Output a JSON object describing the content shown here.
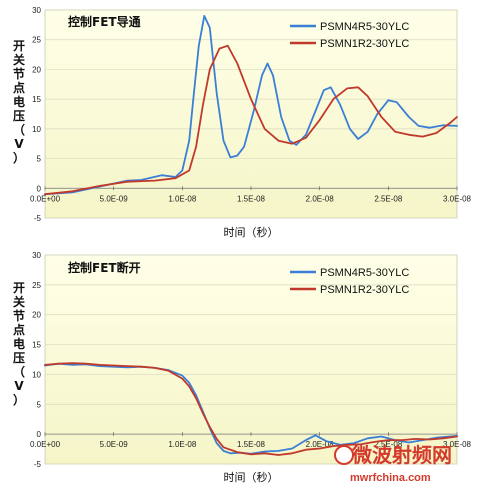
{
  "chart_data": [
    {
      "type": "line",
      "title": "控制FET导通",
      "xlabel": "时间（秒）",
      "ylabel": "开关节点电压（V）",
      "xlim": [
        0,
        3e-08
      ],
      "ylim": [
        -5,
        30
      ],
      "x_ticks": [
        "0.0E+00",
        "5.0E-09",
        "1.0E-08",
        "1.5E-08",
        "2.0E-08",
        "2.5E-08",
        "3.0E-08"
      ],
      "y_ticks": [
        "-5",
        "0",
        "5",
        "10",
        "15",
        "20",
        "25",
        "30"
      ],
      "grid": "horizontal",
      "legend": "top-right",
      "series": [
        {
          "name": "PSMN4R5-30YLC",
          "color": "#3a7fd5",
          "points": [
            [
              0,
              -1
            ],
            [
              2e-09,
              -0.7
            ],
            [
              4e-09,
              0.3
            ],
            [
              6e-09,
              1.3
            ],
            [
              7e-09,
              1.4
            ],
            [
              8.5e-09,
              2.2
            ],
            [
              9.5e-09,
              1.9
            ],
            [
              1e-08,
              3
            ],
            [
              1.05e-08,
              8
            ],
            [
              1.08e-08,
              15
            ],
            [
              1.12e-08,
              24
            ],
            [
              1.16e-08,
              29
            ],
            [
              1.2e-08,
              27
            ],
            [
              1.25e-08,
              16
            ],
            [
              1.3e-08,
              8
            ],
            [
              1.35e-08,
              5.2
            ],
            [
              1.4e-08,
              5.5
            ],
            [
              1.45e-08,
              7
            ],
            [
              1.52e-08,
              13
            ],
            [
              1.58e-08,
              19
            ],
            [
              1.62e-08,
              21
            ],
            [
              1.66e-08,
              19
            ],
            [
              1.72e-08,
              12
            ],
            [
              1.78e-08,
              8
            ],
            [
              1.83e-08,
              7.3
            ],
            [
              1.9e-08,
              9
            ],
            [
              1.97e-08,
              13
            ],
            [
              2.03e-08,
              16.5
            ],
            [
              2.08e-08,
              17
            ],
            [
              2.15e-08,
              14
            ],
            [
              2.22e-08,
              10
            ],
            [
              2.28e-08,
              8.3
            ],
            [
              2.35e-08,
              9.5
            ],
            [
              2.42e-08,
              12.5
            ],
            [
              2.5e-08,
              14.8
            ],
            [
              2.56e-08,
              14.5
            ],
            [
              2.65e-08,
              12
            ],
            [
              2.72e-08,
              10.5
            ],
            [
              2.8e-08,
              10.2
            ],
            [
              2.9e-08,
              10.6
            ],
            [
              3e-08,
              10.5
            ]
          ]
        },
        {
          "name": "PSMN1R2-30YLC",
          "color": "#c0392b",
          "points": [
            [
              0,
              -1
            ],
            [
              2e-09,
              -0.5
            ],
            [
              4e-09,
              0.4
            ],
            [
              6e-09,
              1.1
            ],
            [
              8e-09,
              1.3
            ],
            [
              9.5e-09,
              1.7
            ],
            [
              1.05e-08,
              3
            ],
            [
              1.1e-08,
              7
            ],
            [
              1.15e-08,
              14
            ],
            [
              1.2e-08,
              20
            ],
            [
              1.27e-08,
              23.5
            ],
            [
              1.33e-08,
              24
            ],
            [
              1.4e-08,
              21
            ],
            [
              1.5e-08,
              15
            ],
            [
              1.6e-08,
              10
            ],
            [
              1.7e-08,
              8
            ],
            [
              1.8e-08,
              7.5
            ],
            [
              1.9e-08,
              8.5
            ],
            [
              2e-08,
              11.5
            ],
            [
              2.1e-08,
              15
            ],
            [
              2.2e-08,
              16.8
            ],
            [
              2.28e-08,
              17
            ],
            [
              2.35e-08,
              15.5
            ],
            [
              2.45e-08,
              12
            ],
            [
              2.55e-08,
              9.5
            ],
            [
              2.65e-08,
              9
            ],
            [
              2.75e-08,
              8.7
            ],
            [
              2.85e-08,
              9.3
            ],
            [
              2.95e-08,
              11
            ],
            [
              3e-08,
              12
            ]
          ]
        }
      ]
    },
    {
      "type": "line",
      "title": "控制FET断开",
      "xlabel": "时间（秒）",
      "ylabel": "开关节点电压（V）",
      "xlim": [
        0,
        3e-08
      ],
      "ylim": [
        -5,
        30
      ],
      "x_ticks": [
        "0.0E+00",
        "5.0E-09",
        "1.0E-08",
        "1.5E-08",
        "2.0E-08",
        "2.5E-08",
        "3.0E-08"
      ],
      "y_ticks": [
        "-5",
        "0",
        "5",
        "10",
        "15",
        "20",
        "25",
        "30"
      ],
      "grid": "horizontal",
      "legend": "top-right",
      "series": [
        {
          "name": "PSMN4R5-30YLC",
          "color": "#3a7fd5",
          "points": [
            [
              0,
              11.5
            ],
            [
              1e-09,
              11.8
            ],
            [
              2e-09,
              11.6
            ],
            [
              3e-09,
              11.7
            ],
            [
              4e-09,
              11.4
            ],
            [
              5e-09,
              11.3
            ],
            [
              6e-09,
              11.2
            ],
            [
              7e-09,
              11.3
            ],
            [
              8e-09,
              11.1
            ],
            [
              9e-09,
              10.7
            ],
            [
              1e-08,
              9.8
            ],
            [
              1.05e-08,
              8.6
            ],
            [
              1.1e-08,
              6.5
            ],
            [
              1.15e-08,
              3.8
            ],
            [
              1.2e-08,
              1
            ],
            [
              1.25e-08,
              -1.5
            ],
            [
              1.3e-08,
              -2.8
            ],
            [
              1.35e-08,
              -3.2
            ],
            [
              1.42e-08,
              -3.1
            ],
            [
              1.5e-08,
              -3.3
            ],
            [
              1.6e-08,
              -2.9
            ],
            [
              1.7e-08,
              -2.8
            ],
            [
              1.8e-08,
              -2.4
            ],
            [
              1.9e-08,
              -1
            ],
            [
              1.97e-08,
              -0.2
            ],
            [
              2.05e-08,
              -1.2
            ],
            [
              2.15e-08,
              -1.8
            ],
            [
              2.25e-08,
              -1.5
            ],
            [
              2.35e-08,
              -0.7
            ],
            [
              2.45e-08,
              -0.4
            ],
            [
              2.55e-08,
              -1
            ],
            [
              2.65e-08,
              -1.4
            ],
            [
              2.75e-08,
              -1
            ],
            [
              2.85e-08,
              -0.6
            ],
            [
              3e-08,
              -0.3
            ]
          ]
        },
        {
          "name": "PSMN1R2-30YLC",
          "color": "#c0392b",
          "points": [
            [
              0,
              11.6
            ],
            [
              1e-09,
              11.8
            ],
            [
              2e-09,
              11.9
            ],
            [
              3e-09,
              11.8
            ],
            [
              4e-09,
              11.6
            ],
            [
              5e-09,
              11.5
            ],
            [
              6e-09,
              11.4
            ],
            [
              7e-09,
              11.3
            ],
            [
              8e-09,
              11.1
            ],
            [
              9e-09,
              10.6
            ],
            [
              1e-08,
              9.3
            ],
            [
              1.05e-08,
              8
            ],
            [
              1.1e-08,
              6
            ],
            [
              1.15e-08,
              3.5
            ],
            [
              1.2e-08,
              1.2
            ],
            [
              1.25e-08,
              -0.8
            ],
            [
              1.3e-08,
              -2.2
            ],
            [
              1.4e-08,
              -3
            ],
            [
              1.5e-08,
              -3.4
            ],
            [
              1.6e-08,
              -3.2
            ],
            [
              1.7e-08,
              -3.5
            ],
            [
              1.8e-08,
              -3.2
            ],
            [
              1.9e-08,
              -2.6
            ],
            [
              2e-08,
              -2.4
            ],
            [
              2.1e-08,
              -2
            ],
            [
              2.2e-08,
              -1.8
            ],
            [
              2.3e-08,
              -1.7
            ],
            [
              2.4e-08,
              -1.3
            ],
            [
              2.5e-08,
              -1
            ],
            [
              2.6e-08,
              -1
            ],
            [
              2.7e-08,
              -0.8
            ],
            [
              2.8e-08,
              -0.9
            ],
            [
              2.9e-08,
              -0.7
            ],
            [
              3e-08,
              -0.4
            ]
          ]
        }
      ]
    }
  ],
  "watermark": {
    "cn": "微波射频网",
    "url": "mwrfchina.com"
  }
}
